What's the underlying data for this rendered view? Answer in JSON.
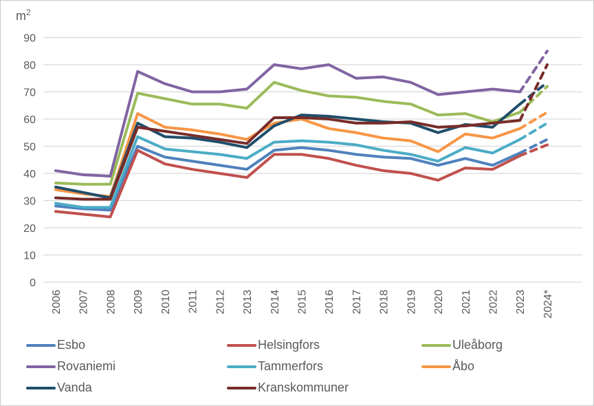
{
  "chart_data": {
    "type": "line",
    "title": "",
    "unit_label": {
      "base": "m",
      "sup": "2"
    },
    "xlabel": "",
    "ylabel": "m2",
    "y_ticks": [
      0,
      10,
      20,
      30,
      40,
      50,
      60,
      70,
      80,
      90
    ],
    "ylim": [
      0,
      90
    ],
    "grid": true,
    "gridline_color": "#d9d9d9",
    "axis_text_color": "#595959",
    "legend_position": "bottom",
    "dashed_last_segment": true,
    "last_category_is_forecast": true,
    "categories": [
      "2006",
      "2007",
      "2008",
      "2009",
      "2010",
      "2011",
      "2012",
      "2013",
      "2014",
      "2015",
      "2016",
      "2017",
      "2018",
      "2019",
      "2020",
      "2021",
      "2022",
      "2023",
      "2024*"
    ],
    "series": [
      {
        "name": "Esbo",
        "color": "#4F81BD",
        "values": [
          28,
          27,
          26.5,
          50,
          46,
          44.5,
          43,
          41.5,
          48.5,
          49.5,
          48.5,
          47,
          46,
          45.5,
          43,
          45.5,
          43,
          47.5,
          52.5
        ]
      },
      {
        "name": "Helsingfors",
        "color": "#C0504D",
        "values": [
          26,
          25,
          24,
          48.5,
          43.5,
          41.5,
          40,
          38.5,
          47,
          47,
          45.5,
          43,
          41,
          40,
          37.5,
          42,
          41.5,
          46.5,
          50.5
        ]
      },
      {
        "name": "Uleåborg",
        "color": "#9BBB59",
        "values": [
          36.5,
          36,
          36,
          69.5,
          67.5,
          65.5,
          65.5,
          64,
          73.5,
          70.5,
          68.5,
          68,
          66.5,
          65.5,
          61.5,
          62,
          59,
          62.5,
          72
        ]
      },
      {
        "name": "Rovaniemi",
        "color": "#8064A2",
        "values": [
          41,
          39.5,
          39,
          77.5,
          73,
          70,
          70,
          71,
          80,
          78.5,
          80,
          75,
          75.5,
          73.5,
          69,
          70,
          71,
          70,
          85
        ]
      },
      {
        "name": "Tammerfors",
        "color": "#4BACC6",
        "values": [
          29,
          27.5,
          27.5,
          53.5,
          49,
          48,
          47,
          45.5,
          51.5,
          52,
          51.5,
          50.5,
          48.5,
          47,
          44.5,
          49.5,
          47.5,
          52.5,
          58.5
        ]
      },
      {
        "name": "Åbo",
        "color": "#F79646",
        "values": [
          34,
          32.5,
          31.5,
          62,
          57,
          56,
          54.5,
          52.5,
          58.5,
          60,
          56.5,
          55,
          53,
          52,
          48,
          54.5,
          53,
          56.5,
          62.5
        ]
      },
      {
        "name": "Vanda",
        "color": "#1F4E6B",
        "values": [
          35,
          33,
          31,
          58.5,
          53.5,
          53,
          51.5,
          49.5,
          57.5,
          61.5,
          61,
          60,
          59,
          58.5,
          55,
          58,
          57,
          65.5,
          73.5
        ]
      },
      {
        "name": "Kranskommuner",
        "color": "#772C29",
        "values": [
          31,
          30.5,
          30.5,
          57,
          55.5,
          54,
          52.5,
          51,
          60.5,
          60.5,
          60,
          58.5,
          58.5,
          59,
          57,
          57.5,
          58.5,
          59.5,
          80
        ]
      }
    ]
  }
}
